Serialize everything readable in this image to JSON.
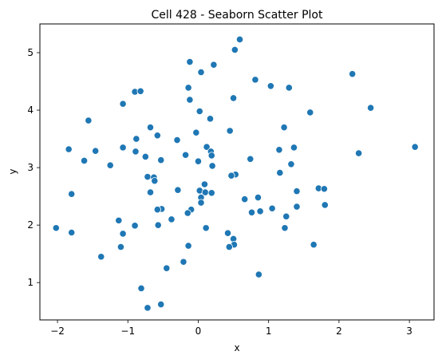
{
  "chart_data": {
    "type": "scatter",
    "title": "Cell 428 - Seaborn Scatter Plot",
    "xlabel": "x",
    "ylabel": "y",
    "xlim": [
      -2.25,
      3.35
    ],
    "ylim": [
      0.35,
      5.5
    ],
    "xticks": [
      -2,
      -1,
      0,
      1,
      2,
      3
    ],
    "yticks": [
      1,
      2,
      3,
      4,
      5
    ],
    "grid": false,
    "legend": "none",
    "marker_color": "#1f77b4",
    "marker_edge_color": "#ffffff",
    "points": [
      {
        "x": 0.59,
        "y": 5.23
      },
      {
        "x": 0.52,
        "y": 5.05
      },
      {
        "x": -0.12,
        "y": 4.84
      },
      {
        "x": 0.22,
        "y": 4.79
      },
      {
        "x": 0.04,
        "y": 4.66
      },
      {
        "x": 2.19,
        "y": 4.63
      },
      {
        "x": 0.81,
        "y": 4.53
      },
      {
        "x": 1.03,
        "y": 4.42
      },
      {
        "x": 1.29,
        "y": 4.39
      },
      {
        "x": -0.14,
        "y": 4.39
      },
      {
        "x": -0.9,
        "y": 4.32
      },
      {
        "x": -0.82,
        "y": 4.33
      },
      {
        "x": 0.5,
        "y": 4.21
      },
      {
        "x": -0.12,
        "y": 4.18
      },
      {
        "x": -1.07,
        "y": 4.11
      },
      {
        "x": 2.45,
        "y": 4.04
      },
      {
        "x": 0.02,
        "y": 3.98
      },
      {
        "x": 1.59,
        "y": 3.96
      },
      {
        "x": 0.17,
        "y": 3.85
      },
      {
        "x": -1.56,
        "y": 3.82
      },
      {
        "x": -0.68,
        "y": 3.7
      },
      {
        "x": 1.22,
        "y": 3.7
      },
      {
        "x": 0.45,
        "y": 3.64
      },
      {
        "x": -0.03,
        "y": 3.61
      },
      {
        "x": -0.58,
        "y": 3.56
      },
      {
        "x": -0.88,
        "y": 3.5
      },
      {
        "x": -0.3,
        "y": 3.48
      },
      {
        "x": 3.08,
        "y": 3.36
      },
      {
        "x": 0.12,
        "y": 3.36
      },
      {
        "x": 1.36,
        "y": 3.35
      },
      {
        "x": -1.07,
        "y": 3.35
      },
      {
        "x": -1.84,
        "y": 3.32
      },
      {
        "x": 1.15,
        "y": 3.31
      },
      {
        "x": -1.46,
        "y": 3.29
      },
      {
        "x": -0.89,
        "y": 3.28
      },
      {
        "x": 0.18,
        "y": 3.28
      },
      {
        "x": 2.28,
        "y": 3.25
      },
      {
        "x": 0.19,
        "y": 3.21
      },
      {
        "x": -0.18,
        "y": 3.22
      },
      {
        "x": -0.75,
        "y": 3.19
      },
      {
        "x": 0.74,
        "y": 3.15
      },
      {
        "x": -0.53,
        "y": 3.13
      },
      {
        "x": -1.62,
        "y": 3.12
      },
      {
        "x": 0.0,
        "y": 3.11
      },
      {
        "x": 1.32,
        "y": 3.06
      },
      {
        "x": -1.25,
        "y": 3.04
      },
      {
        "x": 0.2,
        "y": 3.03
      },
      {
        "x": 1.16,
        "y": 2.91
      },
      {
        "x": 0.53,
        "y": 2.88
      },
      {
        "x": 0.47,
        "y": 2.86
      },
      {
        "x": -0.72,
        "y": 2.84
      },
      {
        "x": -0.63,
        "y": 2.83
      },
      {
        "x": -0.62,
        "y": 2.77
      },
      {
        "x": 0.09,
        "y": 2.71
      },
      {
        "x": 1.71,
        "y": 2.64
      },
      {
        "x": 1.79,
        "y": 2.63
      },
      {
        "x": -0.29,
        "y": 2.61
      },
      {
        "x": 0.02,
        "y": 2.6
      },
      {
        "x": 1.4,
        "y": 2.59
      },
      {
        "x": 0.1,
        "y": 2.57
      },
      {
        "x": -0.68,
        "y": 2.57
      },
      {
        "x": 0.19,
        "y": 2.56
      },
      {
        "x": -1.8,
        "y": 2.54
      },
      {
        "x": 0.04,
        "y": 2.48
      },
      {
        "x": 0.85,
        "y": 2.48
      },
      {
        "x": 0.66,
        "y": 2.45
      },
      {
        "x": 0.04,
        "y": 2.39
      },
      {
        "x": 1.8,
        "y": 2.35
      },
      {
        "x": 1.4,
        "y": 2.32
      },
      {
        "x": 1.05,
        "y": 2.29
      },
      {
        "x": -0.52,
        "y": 2.28
      },
      {
        "x": -0.58,
        "y": 2.27
      },
      {
        "x": -0.1,
        "y": 2.27
      },
      {
        "x": 0.88,
        "y": 2.24
      },
      {
        "x": 0.76,
        "y": 2.22
      },
      {
        "x": -0.15,
        "y": 2.21
      },
      {
        "x": 1.25,
        "y": 2.15
      },
      {
        "x": -0.38,
        "y": 2.1
      },
      {
        "x": -1.13,
        "y": 2.08
      },
      {
        "x": -0.57,
        "y": 2.0
      },
      {
        "x": -0.9,
        "y": 1.99
      },
      {
        "x": 0.11,
        "y": 1.95
      },
      {
        "x": -2.02,
        "y": 1.95
      },
      {
        "x": 1.23,
        "y": 1.95
      },
      {
        "x": -1.8,
        "y": 1.87
      },
      {
        "x": -1.07,
        "y": 1.85
      },
      {
        "x": 0.42,
        "y": 1.86
      },
      {
        "x": 0.5,
        "y": 1.76
      },
      {
        "x": 1.64,
        "y": 1.66
      },
      {
        "x": 0.51,
        "y": 1.66
      },
      {
        "x": 0.44,
        "y": 1.62
      },
      {
        "x": -0.14,
        "y": 1.64
      },
      {
        "x": -1.1,
        "y": 1.62
      },
      {
        "x": -1.38,
        "y": 1.45
      },
      {
        "x": -0.21,
        "y": 1.36
      },
      {
        "x": -0.45,
        "y": 1.25
      },
      {
        "x": 0.86,
        "y": 1.14
      },
      {
        "x": -0.81,
        "y": 0.9
      },
      {
        "x": -0.53,
        "y": 0.62
      },
      {
        "x": -0.72,
        "y": 0.56
      }
    ]
  }
}
